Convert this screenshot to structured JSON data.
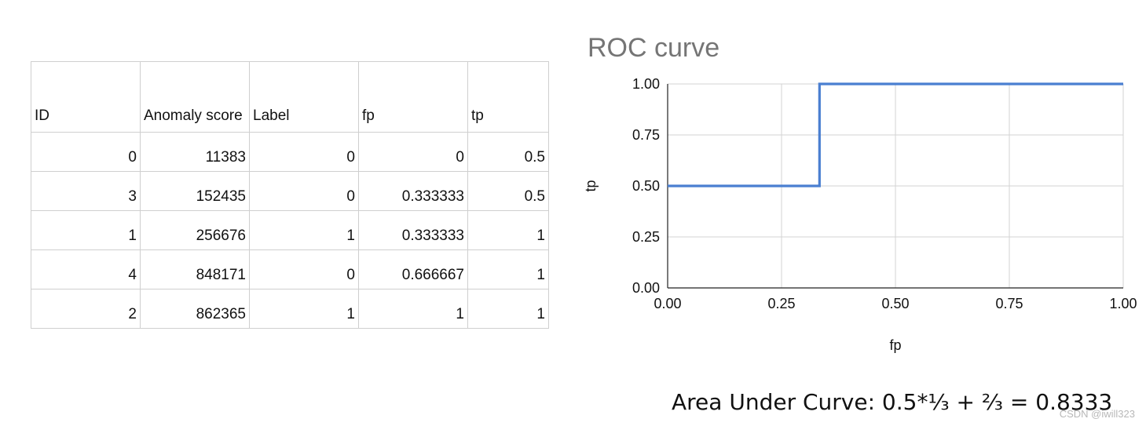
{
  "table": {
    "headers": [
      "ID",
      "Anomaly score",
      "Label",
      "fp",
      "tp"
    ],
    "rows": [
      [
        "0",
        "11383",
        "0",
        "0",
        "0.5"
      ],
      [
        "3",
        "152435",
        "0",
        "0.333333",
        "0.5"
      ],
      [
        "1",
        "256676",
        "1",
        "0.333333",
        "1"
      ],
      [
        "4",
        "848171",
        "0",
        "0.666667",
        "1"
      ],
      [
        "2",
        "862365",
        "1",
        "1",
        "1"
      ]
    ]
  },
  "chart_data": {
    "type": "line",
    "title": "ROC curve",
    "xlabel": "fp",
    "ylabel": "tp",
    "xlim": [
      0,
      1
    ],
    "ylim": [
      0,
      1
    ],
    "grid": true,
    "x_ticks": [
      "0.00",
      "0.25",
      "0.50",
      "0.75",
      "1.00"
    ],
    "y_ticks": [
      "0.00",
      "0.25",
      "0.50",
      "0.75",
      "1.00"
    ],
    "series": [
      {
        "x": [
          0,
          0.333333,
          0.333333,
          0.666667,
          1
        ],
        "y": [
          0.5,
          0.5,
          1,
          1,
          1
        ],
        "color": "#4a7fd1"
      }
    ]
  },
  "footer": {
    "auc_text": "Area Under Curve: 0.5*⅓ + ⅔  = 0.8333",
    "watermark": "CSDN @iwill323"
  }
}
